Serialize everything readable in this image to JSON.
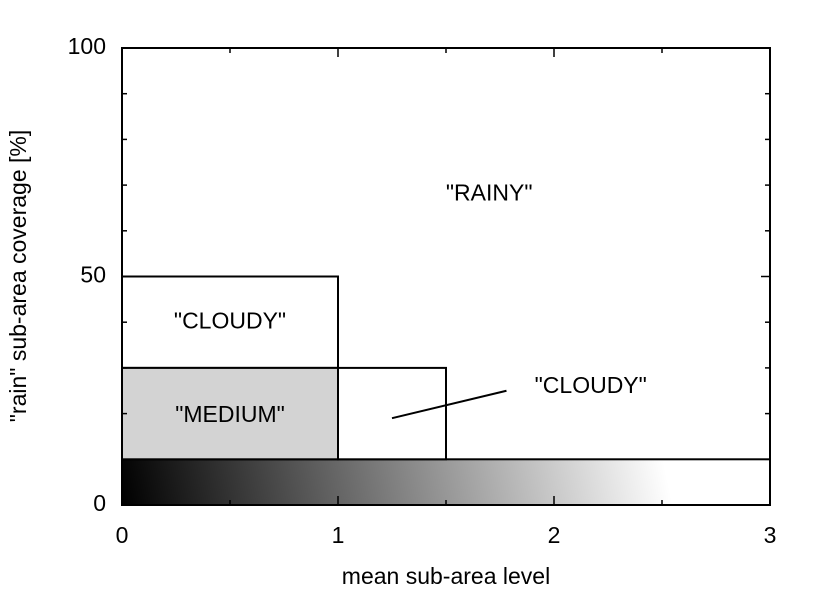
{
  "chart_data": {
    "type": "region",
    "xlabel": "mean sub-area level",
    "ylabel": "\"rain\" sub-area coverage [%]",
    "xlim": [
      0,
      3
    ],
    "xticks": [
      0,
      1,
      2,
      3
    ],
    "xminorticks": [
      0.5,
      1.5,
      2.5
    ],
    "ylim": [
      0,
      100
    ],
    "yticks": [
      0,
      50,
      100
    ],
    "yminorticks": [
      10,
      20,
      30,
      40,
      60,
      70,
      80,
      90
    ],
    "regions": [
      {
        "x": [
          0,
          3
        ],
        "y": [
          0,
          10
        ],
        "fill": [
          "#000000",
          "#ffffff"
        ]
      },
      {
        "x": [
          0,
          1
        ],
        "y": [
          30,
          50
        ],
        "fill": "#ffffff"
      },
      {
        "x": [
          0,
          1
        ],
        "y": [
          10,
          30
        ],
        "fill": "#d3d3d3"
      },
      {
        "x": [
          1,
          1.5
        ],
        "y": [
          10,
          30
        ],
        "fill": "#ffffff"
      }
    ],
    "annotations": [
      {
        "text": "\"RAINY\"",
        "x": 1.7,
        "y": 68
      },
      {
        "text": "\"CLOUDY\"",
        "x": 0.5,
        "y": 40
      },
      {
        "text": "\"MEDIUM\"",
        "x": 0.5,
        "y": 19.5
      },
      {
        "text": "\"CLOUDY\"",
        "x": 2.17,
        "y": 25.8,
        "line_from": [
          1.25,
          19
        ],
        "line_to": [
          1.78,
          25
        ]
      }
    ]
  }
}
